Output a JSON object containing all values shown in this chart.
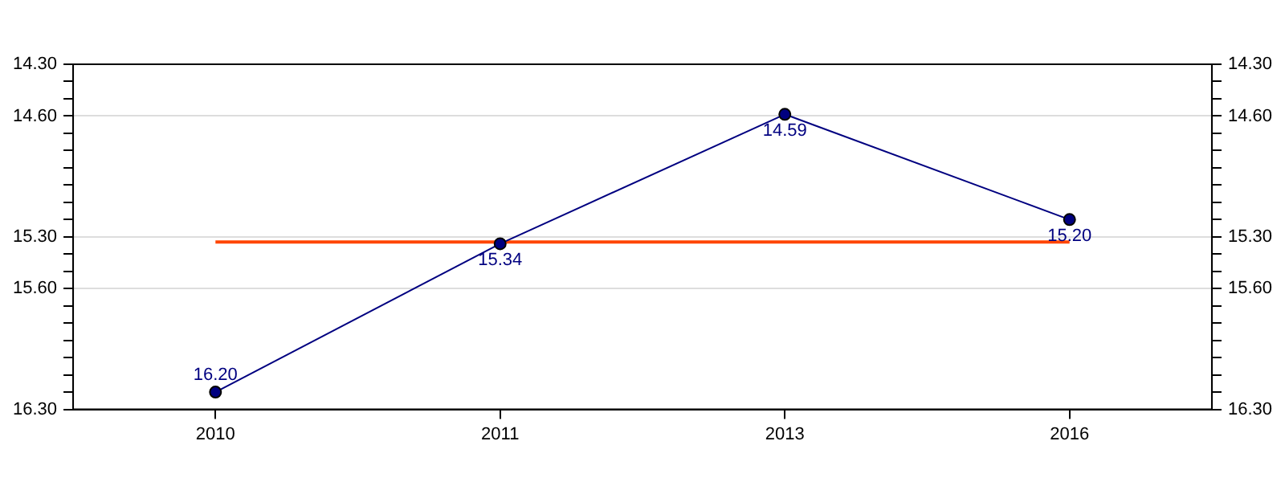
{
  "chart_data": {
    "type": "line",
    "categories": [
      "2010",
      "2011",
      "2013",
      "2016"
    ],
    "series": [
      {
        "color": "#000080",
        "values": [
          16.2,
          15.34,
          14.59,
          15.2
        ],
        "value_labels": [
          "16.20",
          "15.34",
          "14.59",
          "15.20"
        ]
      }
    ],
    "ylim": [
      16.3,
      14.3
    ],
    "yticks": [
      {
        "value": 14.3,
        "label": "14.30"
      },
      {
        "value": 14.4,
        "label": null
      },
      {
        "value": 14.5,
        "label": null
      },
      {
        "value": 14.6,
        "label": "14.60"
      },
      {
        "value": 14.7,
        "label": null
      },
      {
        "value": 14.8,
        "label": null
      },
      {
        "value": 14.9,
        "label": null
      },
      {
        "value": 15.0,
        "label": null
      },
      {
        "value": 15.1,
        "label": null
      },
      {
        "value": 15.2,
        "label": null
      },
      {
        "value": 15.3,
        "label": "15.30"
      },
      {
        "value": 15.4,
        "label": null
      },
      {
        "value": 15.5,
        "label": null
      },
      {
        "value": 15.6,
        "label": "15.60"
      },
      {
        "value": 15.7,
        "label": null
      },
      {
        "value": 15.8,
        "label": null
      },
      {
        "value": 15.9,
        "label": null
      },
      {
        "value": 16.0,
        "label": null
      },
      {
        "value": 16.1,
        "label": null
      },
      {
        "value": 16.2,
        "label": null
      },
      {
        "value": 16.3,
        "label": "16.30"
      }
    ],
    "y2lim": [
      16.3,
      14.3
    ],
    "y2ticks": [
      {
        "value": 14.3,
        "label": "14.30"
      },
      {
        "value": 14.4,
        "label": null
      },
      {
        "value": 14.5,
        "label": null
      },
      {
        "value": 14.6,
        "label": "14.60"
      },
      {
        "value": 14.7,
        "label": null
      },
      {
        "value": 14.8,
        "label": null
      },
      {
        "value": 14.9,
        "label": null
      },
      {
        "value": 15.0,
        "label": null
      },
      {
        "value": 15.1,
        "label": null
      },
      {
        "value": 15.2,
        "label": null
      },
      {
        "value": 15.3,
        "label": "15.30"
      },
      {
        "value": 15.4,
        "label": null
      },
      {
        "value": 15.5,
        "label": null
      },
      {
        "value": 15.6,
        "label": "15.60"
      },
      {
        "value": 15.7,
        "label": null
      },
      {
        "value": 15.8,
        "label": null
      },
      {
        "value": 15.9,
        "label": null
      },
      {
        "value": 16.0,
        "label": null
      },
      {
        "value": 16.1,
        "label": null
      },
      {
        "value": 16.2,
        "label": null
      },
      {
        "value": 16.3,
        "label": "16.30"
      }
    ],
    "ref_lines": [
      {
        "axis": "y",
        "value": 15.33,
        "color": "#ff4500"
      }
    ],
    "grid": "y",
    "marker": "circle",
    "line_style": "solid",
    "legend": false
  }
}
